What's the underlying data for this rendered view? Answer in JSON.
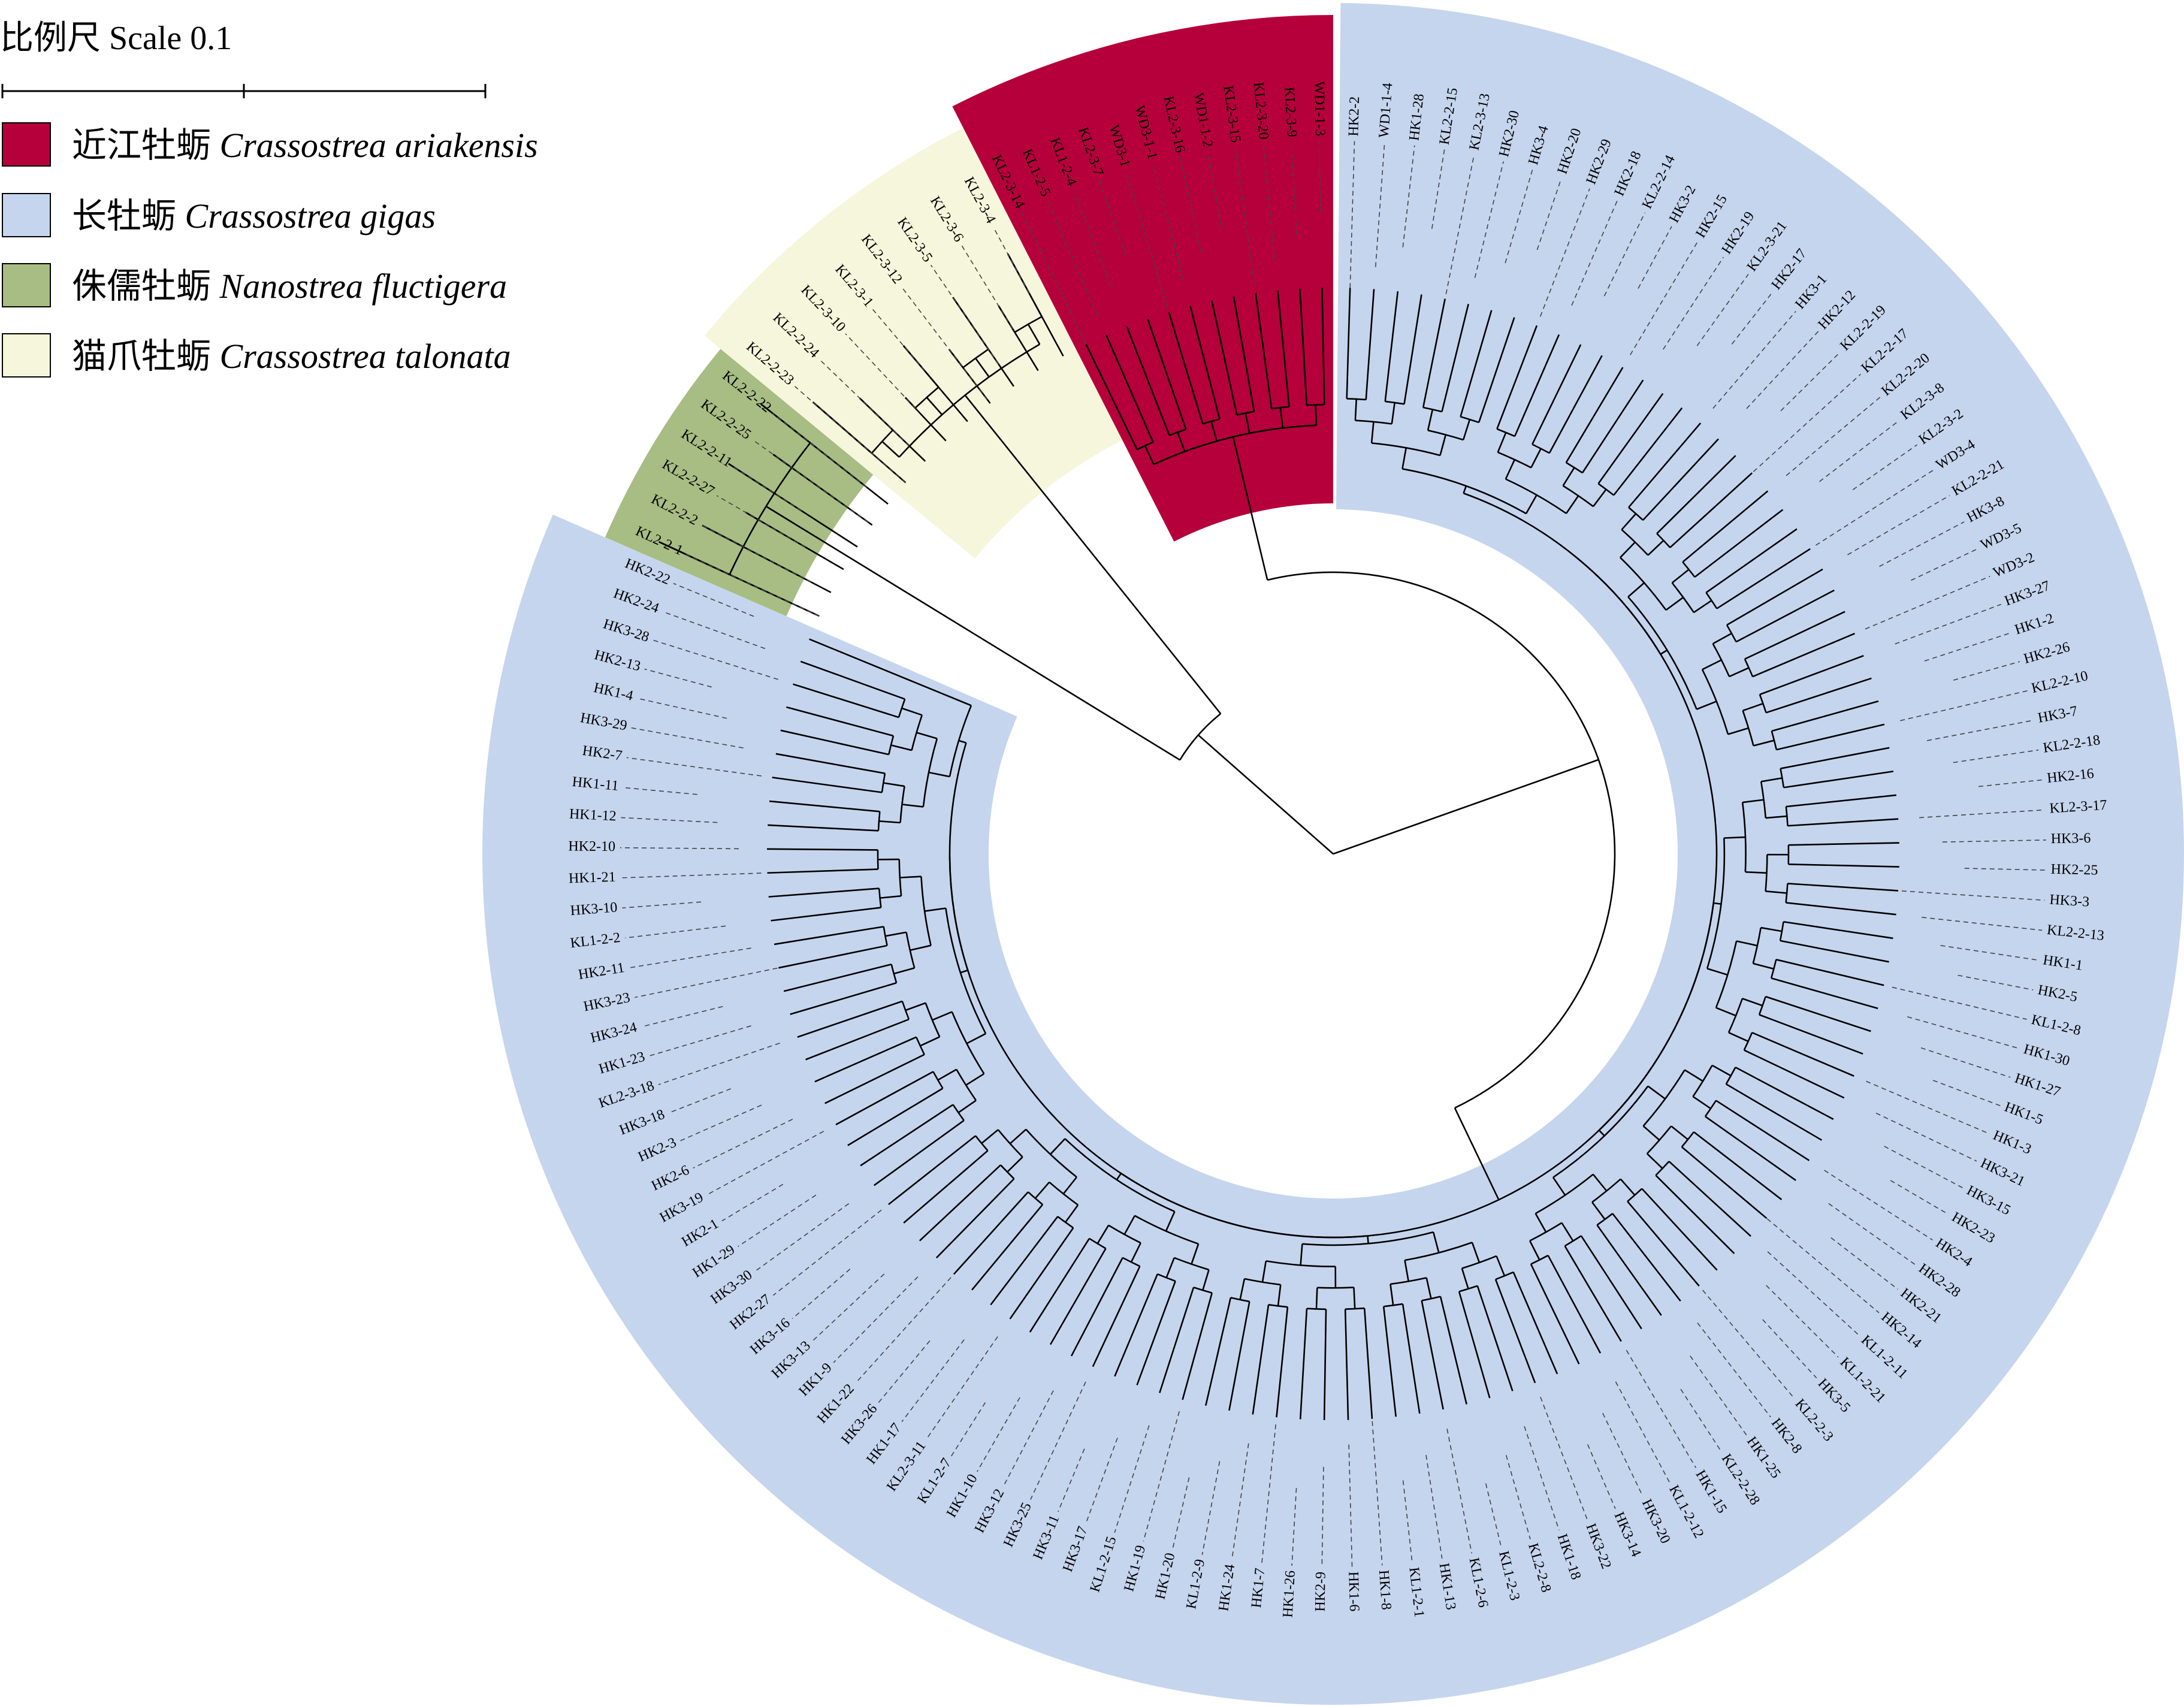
{
  "scale_bar": {
    "label": "比例尺 Scale 0.1",
    "value": 0.1
  },
  "legend": [
    {
      "label_cn": "近江牡蛎",
      "label_latin": "Crassostrea ariakensis",
      "color": "#b5003b"
    },
    {
      "label_cn": "长牡蛎",
      "label_latin": "Crassostrea gigas",
      "color": "#c6d5ee"
    },
    {
      "label_cn": "侏儒牡蛎",
      "label_latin": "Nanostrea fluctigera",
      "color": "#a7bd83"
    },
    {
      "label_cn": "猫爪牡蛎",
      "label_latin": "Crassostrea talonata",
      "color": "#f6f6dc"
    }
  ],
  "tree": {
    "layout": "circular",
    "clades": [
      {
        "species": "Crassostrea gigas",
        "color": "#c6d5ee",
        "leaves_right": [
          "HK2-2",
          "WD1-1-4",
          "HK1-28",
          "KL2-2-15",
          "KL2-3-13",
          "HK2-30",
          "HK3-4",
          "HK2-20",
          "HK2-29",
          "HK2-18",
          "KL2-2-14",
          "HK3-2",
          "HK2-15",
          "HK2-19",
          "KL2-3-21",
          "HK2-17",
          "HK3-1",
          "HK2-12",
          "KL2-2-19",
          "KL2-2-17",
          "KL2-2-20",
          "KL2-3-8",
          "KL2-3-2",
          "WD3-4",
          "KL2-2-21",
          "HK3-8",
          "WD3-5",
          "WD3-2",
          "HK3-27",
          "HK1-2",
          "HK2-26",
          "KL2-2-10",
          "HK3-7",
          "KL2-2-18",
          "HK2-16",
          "KL2-3-17",
          "HK3-6",
          "HK2-25",
          "HK3-3",
          "KL2-2-13",
          "HK1-1",
          "HK2-5",
          "KL1-2-8",
          "HK1-30",
          "HK1-27",
          "HK1-5",
          "HK1-3",
          "HK3-21",
          "HK3-15",
          "HK2-23",
          "HK2-4",
          "HK2-28",
          "HK2-21",
          "HK2-14",
          "KL1-2-11",
          "KL1-2-21",
          "HK3-5",
          "KL2-2-3",
          "HK2-8",
          "HK1-25",
          "KL2-2-28",
          "HK1-15",
          "KL1-2-12",
          "HK3-20",
          "HK3-14",
          "HK3-22",
          "HK1-18",
          "KL2-2-8",
          "KL1-2-3",
          "KL1-2-6",
          "HK1-13",
          "KL1-2-1",
          "HK1-8",
          "HK1-6",
          "HK2-9",
          "HK1-26",
          "HK1-7",
          "HK1-24",
          "KL1-2-9",
          "HK1-20",
          "HK1-19",
          "KL1-2-15",
          "HK3-17",
          "HK3-11",
          "HK3-25",
          "HK3-12",
          "HK1-10",
          "KL1-2-7",
          "KL2-3-11",
          "HK1-17",
          "HK3-26",
          "HK1-22",
          "HK1-9",
          "HK3-13",
          "HK3-16",
          "HK2-27",
          "HK3-30",
          "HK1-29",
          "HK2-1",
          "HK3-19",
          "HK2-6",
          "HK2-3",
          "HK3-18",
          "KL2-3-18",
          "HK1-23",
          "HK3-24",
          "HK3-23",
          "HK2-11",
          "KL1-2-2",
          "HK3-10",
          "HK1-21",
          "HK2-10",
          "HK1-12",
          "HK1-11",
          "HK2-7",
          "HK3-29",
          "HK1-4",
          "HK2-13",
          "HK3-28",
          "HK2-24",
          "HK2-22"
        ]
      },
      {
        "species": "Nanostrea fluctigera",
        "color": "#a7bd83",
        "leaves": [
          "KL2-2-1",
          "KL2-2-2",
          "KL2-2-27",
          "KL2-2-11",
          "KL2-2-25",
          "KL2-2-22"
        ]
      },
      {
        "species": "Crassostrea talonata",
        "color": "#f6f6dc",
        "leaves": [
          "KL2-2-23",
          "KL2-2-24",
          "KL2-3-10",
          "KL2-3-1",
          "KL2-3-12",
          "KL2-3-5",
          "KL2-3-6",
          "KL2-3-4"
        ]
      },
      {
        "species": "Crassostrea ariakensis",
        "color": "#b5003b",
        "leaves": [
          "KL2-3-14",
          "KL1-2-5",
          "KL1-2-4",
          "KL2-3-7",
          "WD3-1",
          "WD3-1-1",
          "KL2-3-16",
          "WD1-1-2",
          "KL2-3-15",
          "KL2-3-20",
          "KL2-3-9",
          "WD1-1-3"
        ]
      }
    ]
  }
}
